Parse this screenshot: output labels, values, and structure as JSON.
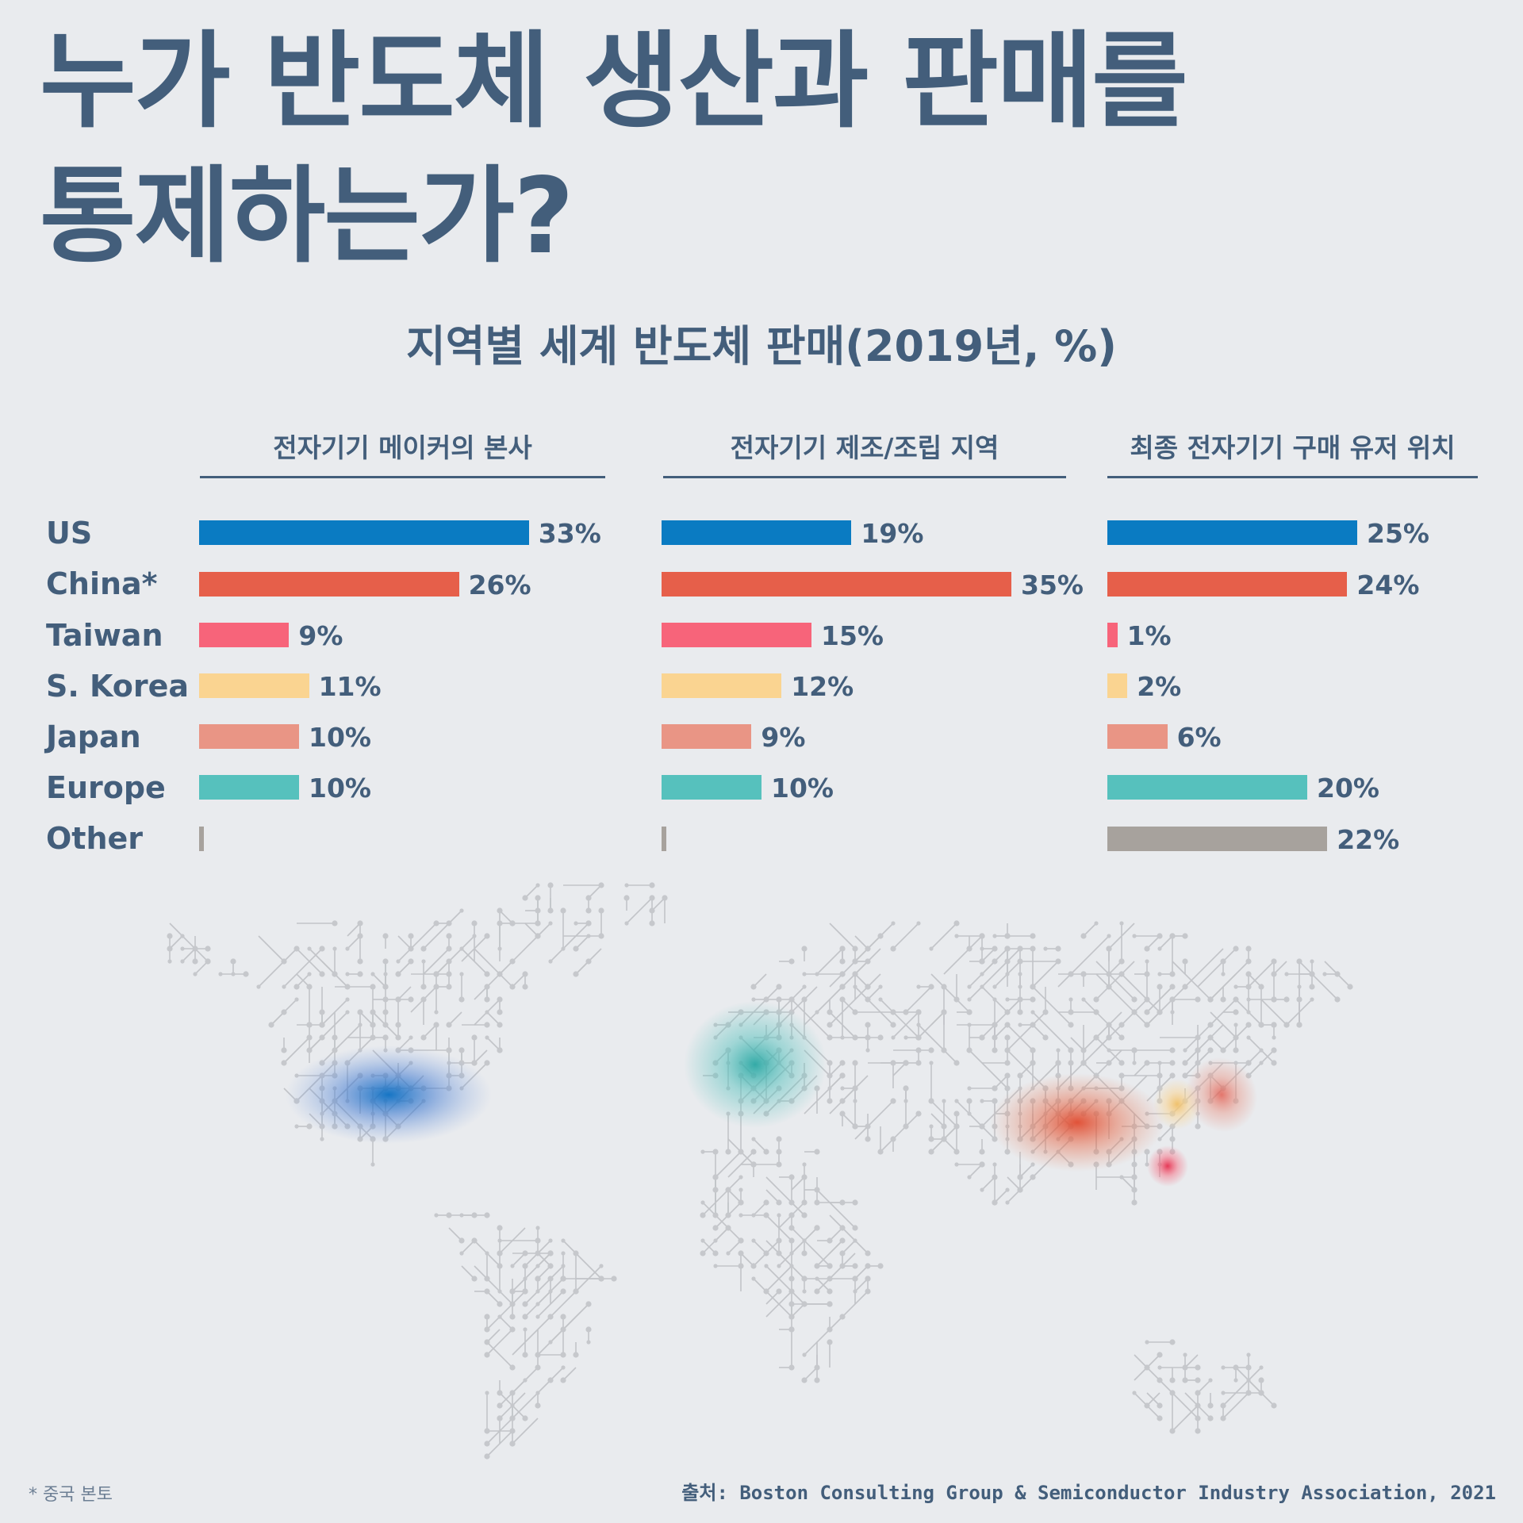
{
  "title_line1": "누가 반도체 생산과 판매를",
  "title_line2": "통제하는가?",
  "footnote": "* 중국 본토",
  "source": "출처: Boston Consulting Group & Semiconductor Industry Association, 2021",
  "colors": {
    "US": "#0a7bc2",
    "China*": "#e65f4a",
    "Taiwan": "#f7647a",
    "S. Korea": "#fad491",
    "Japan": "#e99585",
    "Europe": "#56c1bd",
    "Other": "#a7a29d"
  },
  "chart_data": {
    "type": "bar",
    "orientation": "horizontal",
    "title": "지역별 세계 반도체 판매(2019년, %)",
    "categories": [
      "US",
      "China*",
      "Taiwan",
      "S. Korea",
      "Japan",
      "Europe",
      "Other"
    ],
    "series": [
      {
        "name": "전자기기 메이커의 본사",
        "values": [
          33,
          26,
          9,
          11,
          10,
          10,
          0.5
        ],
        "labels": [
          "33%",
          "26%",
          "9%",
          "11%",
          "10%",
          "10%",
          ""
        ]
      },
      {
        "name": "전자기기 제조/조립 지역",
        "values": [
          19,
          35,
          15,
          12,
          9,
          10,
          0.5
        ],
        "labels": [
          "19%",
          "35%",
          "15%",
          "12%",
          "9%",
          "10%",
          ""
        ]
      },
      {
        "name": "최종 전자기기 구매 유저 위치",
        "values": [
          25,
          24,
          1,
          2,
          6,
          20,
          22
        ],
        "labels": [
          "25%",
          "24%",
          "1%",
          "2%",
          "6%",
          "20%",
          "22%"
        ]
      }
    ],
    "xlim": [
      0,
      35
    ],
    "grid": false,
    "legend": "none"
  }
}
